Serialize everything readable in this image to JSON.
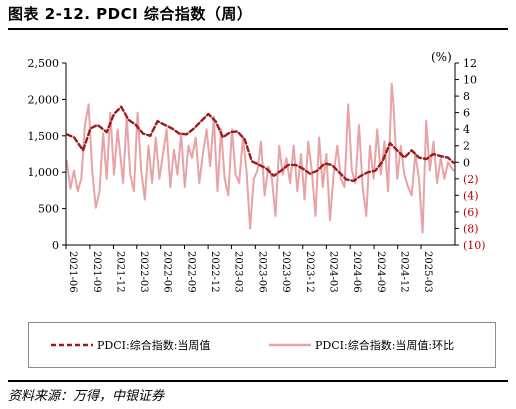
{
  "title": "图表 2-12. PDCI 综合指数（周）",
  "source": "资料来源：万得，中银证券",
  "legend": {
    "series1": "PDCI:综合指数:当周值",
    "series2": "PDCI:综合指数:当周值:环比"
  },
  "colors": {
    "series1": "#9e1b1b",
    "series2": "#e8a3a6",
    "negative_tick": "#c00000"
  },
  "chart_data": {
    "type": "line",
    "x_tick_labels": [
      "2021-06",
      "2021-09",
      "2021-12",
      "2022-03",
      "2022-06",
      "2022-09",
      "2022-12",
      "2023-03",
      "2023-06",
      "2023-09",
      "2023-12",
      "2024-03",
      "2024-06",
      "2024-09",
      "2024-12",
      "2025-03"
    ],
    "left_axis": {
      "ylim": [
        0,
        2500
      ],
      "ticks": [
        "0",
        "500",
        "1,000",
        "1,500",
        "2,000",
        "2,500"
      ]
    },
    "right_axis": {
      "label": "(%)",
      "ylim": [
        -10,
        12
      ],
      "ticks": [
        "(10)",
        "(8)",
        "(6)",
        "(4)",
        "(2)",
        "0",
        "2",
        "4",
        "6",
        "8",
        "10",
        "12"
      ]
    },
    "grid": false,
    "series": [
      {
        "name": "PDCI:综合指数:当周值",
        "axis": "left",
        "style": "dashed",
        "points": [
          [
            "2021-06-04",
            1520
          ],
          [
            "2021-07-02",
            1480
          ],
          [
            "2021-08-06",
            1300
          ],
          [
            "2021-09-03",
            1600
          ],
          [
            "2021-10-01",
            1650
          ],
          [
            "2021-11-05",
            1550
          ],
          [
            "2021-12-03",
            1800
          ],
          [
            "2021-12-31",
            1900
          ],
          [
            "2022-01-28",
            1720
          ],
          [
            "2022-02-25",
            1650
          ],
          [
            "2022-03-25",
            1530
          ],
          [
            "2022-04-22",
            1500
          ],
          [
            "2022-05-20",
            1700
          ],
          [
            "2022-06-17",
            1650
          ],
          [
            "2022-07-15",
            1600
          ],
          [
            "2022-08-12",
            1530
          ],
          [
            "2022-09-09",
            1520
          ],
          [
            "2022-10-07",
            1600
          ],
          [
            "2022-11-04",
            1700
          ],
          [
            "2022-12-02",
            1800
          ],
          [
            "2022-12-30",
            1700
          ],
          [
            "2023-01-27",
            1480
          ],
          [
            "2023-02-24",
            1550
          ],
          [
            "2023-03-24",
            1560
          ],
          [
            "2023-04-21",
            1450
          ],
          [
            "2023-05-19",
            1150
          ],
          [
            "2023-06-16",
            1100
          ],
          [
            "2023-07-14",
            1050
          ],
          [
            "2023-08-11",
            950
          ],
          [
            "2023-09-08",
            1020
          ],
          [
            "2023-10-06",
            1100
          ],
          [
            "2023-11-03",
            1100
          ],
          [
            "2023-12-01",
            1050
          ],
          [
            "2023-12-29",
            980
          ],
          [
            "2024-01-26",
            1020
          ],
          [
            "2024-02-23",
            1120
          ],
          [
            "2024-03-22",
            1100
          ],
          [
            "2024-04-19",
            1000
          ],
          [
            "2024-05-17",
            900
          ],
          [
            "2024-06-14",
            880
          ],
          [
            "2024-07-12",
            950
          ],
          [
            "2024-08-09",
            1000
          ],
          [
            "2024-09-06",
            1020
          ],
          [
            "2024-10-04",
            1150
          ],
          [
            "2024-11-01",
            1400
          ],
          [
            "2024-11-29",
            1300
          ],
          [
            "2024-12-27",
            1200
          ],
          [
            "2025-01-24",
            1300
          ],
          [
            "2025-02-21",
            1200
          ],
          [
            "2025-03-21",
            1180
          ],
          [
            "2025-04-18",
            1250
          ],
          [
            "2025-05-16",
            1220
          ],
          [
            "2025-06-13",
            1200
          ],
          [
            "2025-07-04",
            1130
          ]
        ]
      },
      {
        "name": "PDCI:综合指数:当周值:环比",
        "axis": "right",
        "style": "solid",
        "points": [
          [
            "2021-06-04",
            0.2
          ],
          [
            "2021-06-18",
            -3.2
          ],
          [
            "2021-07-02",
            -1.0
          ],
          [
            "2021-07-16",
            -3.5
          ],
          [
            "2021-07-30",
            -2.0
          ],
          [
            "2021-08-13",
            4.5
          ],
          [
            "2021-08-27",
            7.0
          ],
          [
            "2021-09-10",
            -1.0
          ],
          [
            "2021-09-24",
            -5.5
          ],
          [
            "2021-10-08",
            -3.5
          ],
          [
            "2021-10-22",
            3.5
          ],
          [
            "2021-11-05",
            -2.0
          ],
          [
            "2021-11-19",
            6.0
          ],
          [
            "2021-12-03",
            -1.5
          ],
          [
            "2021-12-17",
            4.0
          ],
          [
            "2022-01-07",
            -2.5
          ],
          [
            "2022-01-21",
            5.5
          ],
          [
            "2022-02-04",
            -1.5
          ],
          [
            "2022-02-18",
            -3.5
          ],
          [
            "2022-03-04",
            6.0
          ],
          [
            "2022-03-18",
            -1.0
          ],
          [
            "2022-04-01",
            -4.5
          ],
          [
            "2022-04-15",
            2.0
          ],
          [
            "2022-04-29",
            -2.5
          ],
          [
            "2022-05-13",
            3.0
          ],
          [
            "2022-05-27",
            -2.0
          ],
          [
            "2022-06-10",
            1.0
          ],
          [
            "2022-06-24",
            4.0
          ],
          [
            "2022-07-08",
            -3.0
          ],
          [
            "2022-07-22",
            1.5
          ],
          [
            "2022-08-05",
            -1.5
          ],
          [
            "2022-08-19",
            3.5
          ],
          [
            "2022-09-02",
            -3.0
          ],
          [
            "2022-09-16",
            2.0
          ],
          [
            "2022-09-30",
            0.5
          ],
          [
            "2022-10-14",
            3.0
          ],
          [
            "2022-10-28",
            -2.5
          ],
          [
            "2022-11-11",
            1.0
          ],
          [
            "2022-11-25",
            4.0
          ],
          [
            "2022-12-09",
            -0.5
          ],
          [
            "2022-12-23",
            5.5
          ],
          [
            "2023-01-06",
            -3.5
          ],
          [
            "2023-01-20",
            4.0
          ],
          [
            "2023-02-03",
            -2.0
          ],
          [
            "2023-02-17",
            -4.0
          ],
          [
            "2023-03-03",
            4.0
          ],
          [
            "2023-03-17",
            -1.5
          ],
          [
            "2023-03-31",
            -2.5
          ],
          [
            "2023-04-14",
            3.0
          ],
          [
            "2023-04-28",
            -1.0
          ],
          [
            "2023-05-12",
            -8.0
          ],
          [
            "2023-05-26",
            -2.0
          ],
          [
            "2023-06-09",
            -1.0
          ],
          [
            "2023-06-23",
            2.5
          ],
          [
            "2023-07-07",
            -4.0
          ],
          [
            "2023-07-21",
            -0.5
          ],
          [
            "2023-08-04",
            -2.0
          ],
          [
            "2023-08-18",
            -6.5
          ],
          [
            "2023-09-01",
            2.0
          ],
          [
            "2023-09-15",
            -1.5
          ],
          [
            "2023-09-29",
            0.5
          ],
          [
            "2023-10-13",
            -2.5
          ],
          [
            "2023-10-27",
            2.0
          ],
          [
            "2023-11-10",
            -3.5
          ],
          [
            "2023-11-24",
            1.0
          ],
          [
            "2023-12-08",
            -4.5
          ],
          [
            "2023-12-22",
            2.5
          ],
          [
            "2024-01-05",
            -1.0
          ],
          [
            "2024-01-19",
            -6.5
          ],
          [
            "2024-02-02",
            3.0
          ],
          [
            "2024-02-16",
            -3.0
          ],
          [
            "2024-03-01",
            1.0
          ],
          [
            "2024-03-15",
            -7.0
          ],
          [
            "2024-03-29",
            -1.5
          ],
          [
            "2024-04-12",
            2.0
          ],
          [
            "2024-04-26",
            -2.0
          ],
          [
            "2024-05-10",
            -3.0
          ],
          [
            "2024-05-24",
            7.0
          ],
          [
            "2024-06-07",
            -1.0
          ],
          [
            "2024-06-21",
            -2.5
          ],
          [
            "2024-07-05",
            4.5
          ],
          [
            "2024-07-19",
            -3.0
          ],
          [
            "2024-08-02",
            -6.5
          ],
          [
            "2024-08-16",
            2.0
          ],
          [
            "2024-08-30",
            -2.0
          ],
          [
            "2024-09-13",
            4.0
          ],
          [
            "2024-09-27",
            -1.5
          ],
          [
            "2024-10-11",
            2.5
          ],
          [
            "2024-10-25",
            -3.5
          ],
          [
            "2024-11-08",
            9.5
          ],
          [
            "2024-11-15",
            7.0
          ],
          [
            "2024-11-29",
            -2.0
          ],
          [
            "2024-12-13",
            2.0
          ],
          [
            "2024-12-27",
            -1.5
          ],
          [
            "2025-01-10",
            -3.0
          ],
          [
            "2025-01-24",
            -4.0
          ],
          [
            "2025-02-07",
            1.0
          ],
          [
            "2025-02-21",
            -2.0
          ],
          [
            "2025-03-07",
            -8.5
          ],
          [
            "2025-03-21",
            5.0
          ],
          [
            "2025-04-04",
            -1.0
          ],
          [
            "2025-04-18",
            2.5
          ],
          [
            "2025-05-02",
            -2.5
          ],
          [
            "2025-05-16",
            0.5
          ],
          [
            "2025-05-30",
            -2.0
          ],
          [
            "2025-06-13",
            0.0
          ],
          [
            "2025-07-04",
            -1.0
          ]
        ]
      }
    ]
  }
}
